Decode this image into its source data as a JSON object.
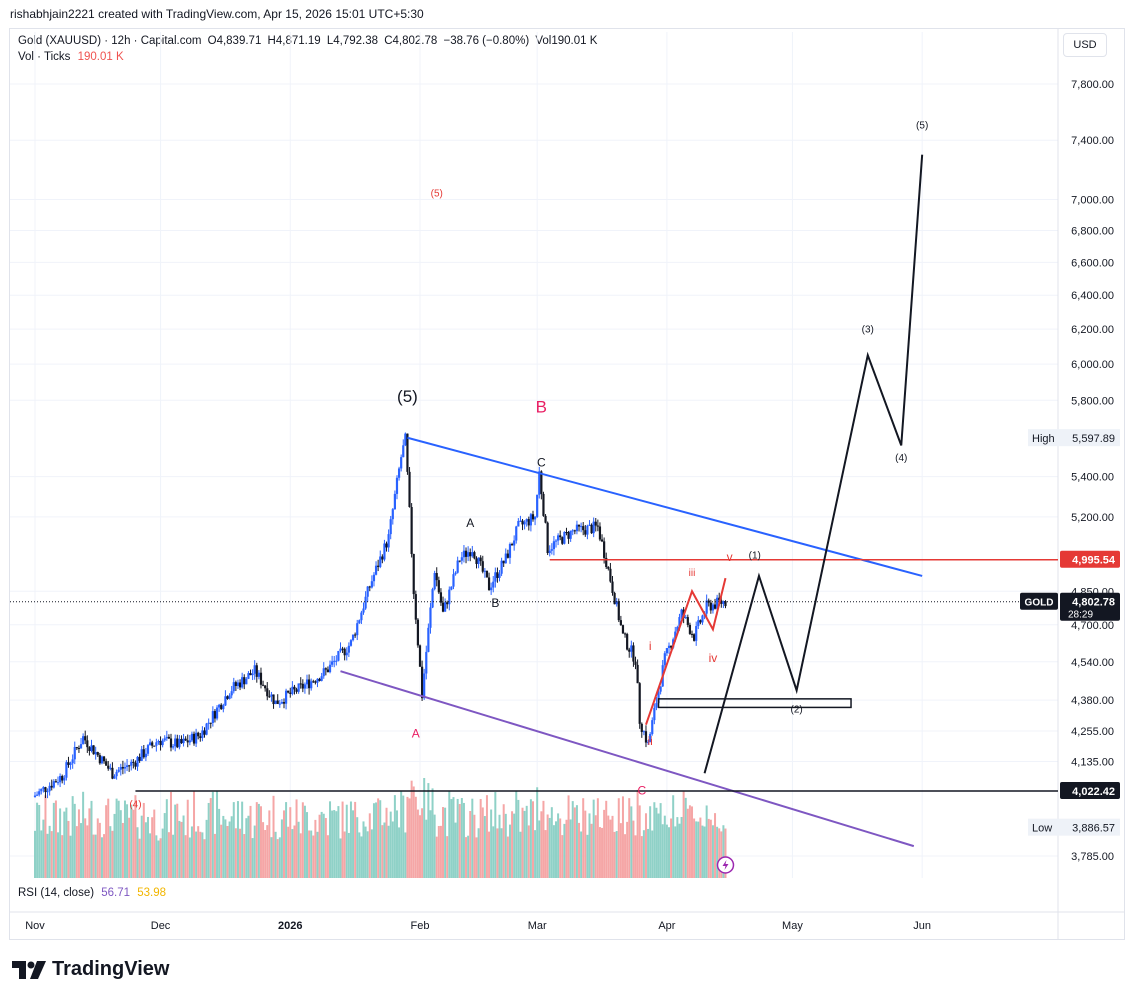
{
  "header": {
    "text": "rishabhjain2221 created with TradingView.com, Apr 15, 2026 15:01 UTC+5:30"
  },
  "legend": {
    "symbol": "Gold (XAUUSD) · 12h · Capital.com",
    "open": "O4,839.71",
    "high": "H4,871.19",
    "low": "L4,792.38",
    "close": "C4,802.78",
    "change": "−38.76 (−0.80%)",
    "volume": "Vol190.01 K",
    "vol_label": "Vol · Ticks",
    "vol_value": "190.01 K"
  },
  "rsi": {
    "label": "RSI (14, close)",
    "value1": "56.71",
    "value2": "53.98"
  },
  "currency_button": "USD",
  "logo_text": "TradingView",
  "price_labels": {
    "high_label": "High",
    "high_value": "5,597.89",
    "low_label": "Low",
    "low_value": "3,886.57",
    "level_red": "4,995.54",
    "level_black": "4,022.42",
    "current_symbol": "GOLD",
    "current_price": "4,802.78",
    "countdown": "28:29"
  },
  "colors": {
    "up": "#2962ff",
    "down": "#131722",
    "vol_up": "#8fd1c7",
    "vol_down": "#f5a6a6",
    "trend_blue": "#2962ff",
    "trend_purple": "#7e57c2",
    "red_level": "#e53935",
    "wave_red": "#e91e63"
  },
  "chart_data": {
    "type": "candlestick",
    "symbol": "XAUUSD",
    "timeframe": "12h",
    "y_axis": {
      "scale": "log",
      "ticks": [
        "7,800.00",
        "7,400.00",
        "7,000.00",
        "6,800.00",
        "6,600.00",
        "6,400.00",
        "6,200.00",
        "6,000.00",
        "5,800.00",
        "5,400.00",
        "5,200.00",
        "4,850.00",
        "4,700.00",
        "4,540.00",
        "4,380.00",
        "4,255.00",
        "4,135.00",
        "3,785.00"
      ]
    },
    "x_axis": {
      "ticks": [
        "Nov",
        "Dec",
        "2026",
        "Feb",
        "Mar",
        "Apr",
        "May",
        "Jun"
      ]
    },
    "price_path": [
      [
        "2025-11-01",
        4000
      ],
      [
        "2025-11-08",
        4080
      ],
      [
        "2025-11-13",
        4230
      ],
      [
        "2025-11-20",
        4090
      ],
      [
        "2025-11-25",
        4130
      ],
      [
        "2025-12-01",
        4220
      ],
      [
        "2025-12-06",
        4200
      ],
      [
        "2025-12-11",
        4240
      ],
      [
        "2025-12-18",
        4420
      ],
      [
        "2025-12-24",
        4500
      ],
      [
        "2025-12-29",
        4370
      ],
      [
        "2026-01-04",
        4430
      ],
      [
        "2026-01-10",
        4500
      ],
      [
        "2026-01-16",
        4620
      ],
      [
        "2026-01-21",
        4900
      ],
      [
        "2026-01-25",
        5100
      ],
      [
        "2026-01-28",
        5500
      ],
      [
        "2026-01-29",
        5590
      ],
      [
        "2026-01-31",
        4850
      ],
      [
        "2026-02-02",
        4400
      ],
      [
        "2026-02-05",
        4950
      ],
      [
        "2026-02-07",
        4750
      ],
      [
        "2026-02-11",
        5000
      ],
      [
        "2026-02-14",
        5050
      ],
      [
        "2026-02-18",
        4870
      ],
      [
        "2026-02-22",
        5000
      ],
      [
        "2026-02-25",
        5150
      ],
      [
        "2026-03-01",
        5200
      ],
      [
        "2026-03-02",
        5420
      ],
      [
        "2026-03-04",
        5050
      ],
      [
        "2026-03-10",
        5130
      ],
      [
        "2026-03-16",
        5150
      ],
      [
        "2026-03-18",
        4990
      ],
      [
        "2026-03-22",
        4650
      ],
      [
        "2026-03-25",
        4550
      ],
      [
        "2026-03-26",
        4300
      ],
      [
        "2026-03-28",
        4200
      ],
      [
        "2026-04-01",
        4550
      ],
      [
        "2026-04-05",
        4750
      ],
      [
        "2026-04-08",
        4650
      ],
      [
        "2026-04-11",
        4780
      ],
      [
        "2026-04-15",
        4802.78
      ]
    ],
    "volume_unit": "ticks",
    "horizontal_levels": [
      {
        "value": 4995.54,
        "color": "#e53935"
      },
      {
        "value": 4022.42,
        "color": "#131722"
      }
    ],
    "trendlines": [
      {
        "color": "#2962ff",
        "from": [
          "2026-01-29",
          5600
        ],
        "to": [
          "2026-06-01",
          4920
        ]
      },
      {
        "color": "#7e57c2",
        "from": [
          "2026-01-13",
          4500
        ],
        "to": [
          "2026-05-30",
          3820
        ]
      }
    ],
    "projection_black": [
      [
        "2026-04-10",
        4090
      ],
      [
        "2026-04-23",
        4920
      ],
      [
        "2026-05-02",
        4420
      ],
      [
        "2026-05-19",
        6050
      ],
      [
        "2026-05-27",
        5560
      ],
      [
        "2026-06-01",
        7300
      ]
    ],
    "projection_red": [
      [
        "2026-03-27",
        4280
      ],
      [
        "2026-04-07",
        4850
      ],
      [
        "2026-04-12",
        4680
      ],
      [
        "2026-04-15",
        4910
      ]
    ],
    "box": {
      "from": [
        "2026-03-30",
        4385
      ],
      "to": [
        "2026-05-15",
        4350
      ]
    },
    "wave_labels": [
      {
        "text": "(5)",
        "color": "#131722",
        "at": [
          "2026-01-29",
          5790
        ]
      },
      {
        "text": "(5)",
        "color": "#e53935",
        "at": [
          "2026-02-05",
          7020
        ]
      },
      {
        "text": "B",
        "color": "#e91e63",
        "at": [
          "2026-03-02",
          5735
        ]
      },
      {
        "text": "C",
        "color": "#131722",
        "at": [
          "2026-03-02",
          5450
        ]
      },
      {
        "text": "A",
        "color": "#131722",
        "at": [
          "2026-02-13",
          5150
        ]
      },
      {
        "text": "B",
        "color": "#131722",
        "at": [
          "2026-02-19",
          4780
        ]
      },
      {
        "text": "A",
        "color": "#e91e63",
        "at": [
          "2026-01-31",
          4230
        ]
      },
      {
        "text": "C",
        "color": "#e91e63",
        "at": [
          "2026-03-26",
          4010
        ]
      },
      {
        "text": "(4)",
        "color": "#e53935",
        "at": [
          "2025-11-25",
          3960
        ]
      },
      {
        "text": "i",
        "color": "#e53935",
        "at": [
          "2026-03-28",
          4590
        ]
      },
      {
        "text": "ii",
        "color": "#e53935",
        "at": [
          "2026-03-28",
          4200
        ]
      },
      {
        "text": "iii",
        "color": "#e53935",
        "at": [
          "2026-04-07",
          4920
        ]
      },
      {
        "text": "iv",
        "color": "#e53935",
        "at": [
          "2026-04-12",
          4540
        ]
      },
      {
        "text": "v",
        "color": "#e53935",
        "at": [
          "2026-04-16",
          4990
        ]
      },
      {
        "text": "(1)",
        "color": "#131722",
        "at": [
          "2026-04-22",
          5000
        ]
      },
      {
        "text": "(2)",
        "color": "#131722",
        "at": [
          "2026-05-02",
          4330
        ]
      },
      {
        "text": "(3)",
        "color": "#131722",
        "at": [
          "2026-05-19",
          6180
        ]
      },
      {
        "text": "(4)",
        "color": "#131722",
        "at": [
          "2026-05-27",
          5480
        ]
      },
      {
        "text": "(5)",
        "color": "#131722",
        "at": [
          "2026-06-01",
          7480
        ]
      }
    ]
  }
}
